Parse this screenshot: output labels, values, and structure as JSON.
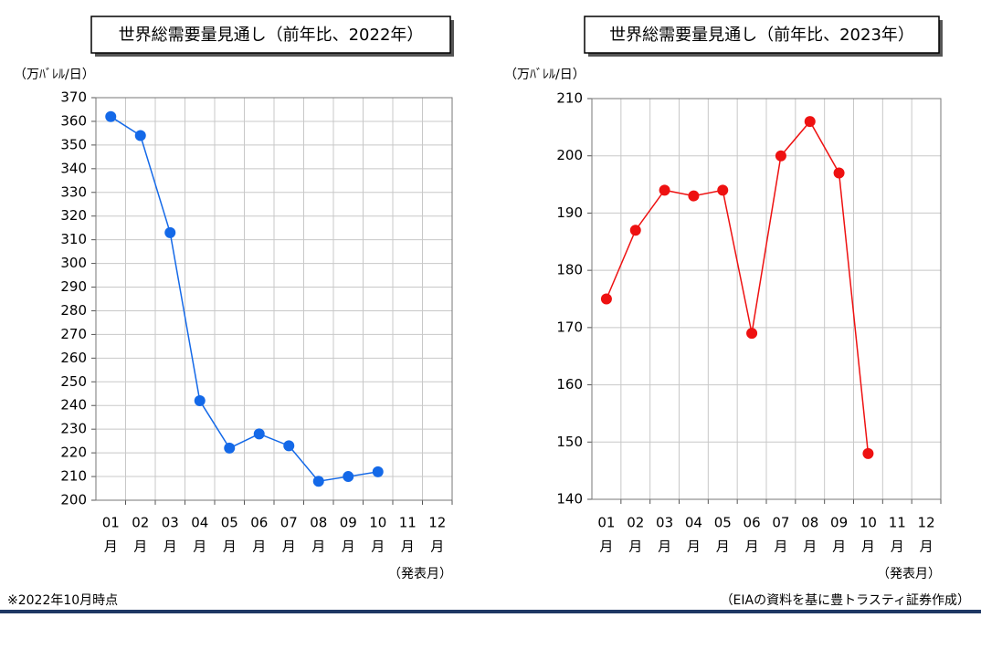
{
  "chart_data": [
    {
      "type": "line",
      "title": "世界総需要量見通し（前年比、2022年）",
      "y_label": "（万ﾊﾞﾚﾙ/日）",
      "x_label": "（発表月）",
      "categories": [
        "01",
        "02",
        "03",
        "04",
        "05",
        "06",
        "07",
        "08",
        "09",
        "10",
        "11",
        "12"
      ],
      "category_suffix": "月",
      "series": [
        {
          "color": "#1469e8",
          "values": [
            362,
            354,
            313,
            242,
            222,
            228,
            223,
            208,
            210,
            212,
            null,
            null
          ]
        }
      ],
      "ylim": [
        200,
        370
      ],
      "yticks": [
        200,
        210,
        220,
        230,
        240,
        250,
        260,
        270,
        280,
        290,
        300,
        310,
        320,
        330,
        340,
        350,
        360,
        370
      ],
      "grid": true
    },
    {
      "type": "line",
      "title": "世界総需要量見通し（前年比、2023年）",
      "y_label": "（万ﾊﾞﾚﾙ/日）",
      "x_label": "（発表月）",
      "categories": [
        "01",
        "02",
        "03",
        "04",
        "05",
        "06",
        "07",
        "08",
        "09",
        "10",
        "11",
        "12"
      ],
      "category_suffix": "月",
      "series": [
        {
          "color": "#ee1111",
          "values": [
            175,
            187,
            194,
            193,
            194,
            169,
            200,
            206,
            197,
            148,
            null,
            null
          ]
        }
      ],
      "ylim": [
        140,
        210
      ],
      "yticks": [
        140,
        150,
        160,
        170,
        180,
        190,
        200,
        210
      ],
      "grid": true
    }
  ],
  "footnote": "※2022年10月時点",
  "source": "（EIAの資料を基に豊トラスティ証券作成）"
}
